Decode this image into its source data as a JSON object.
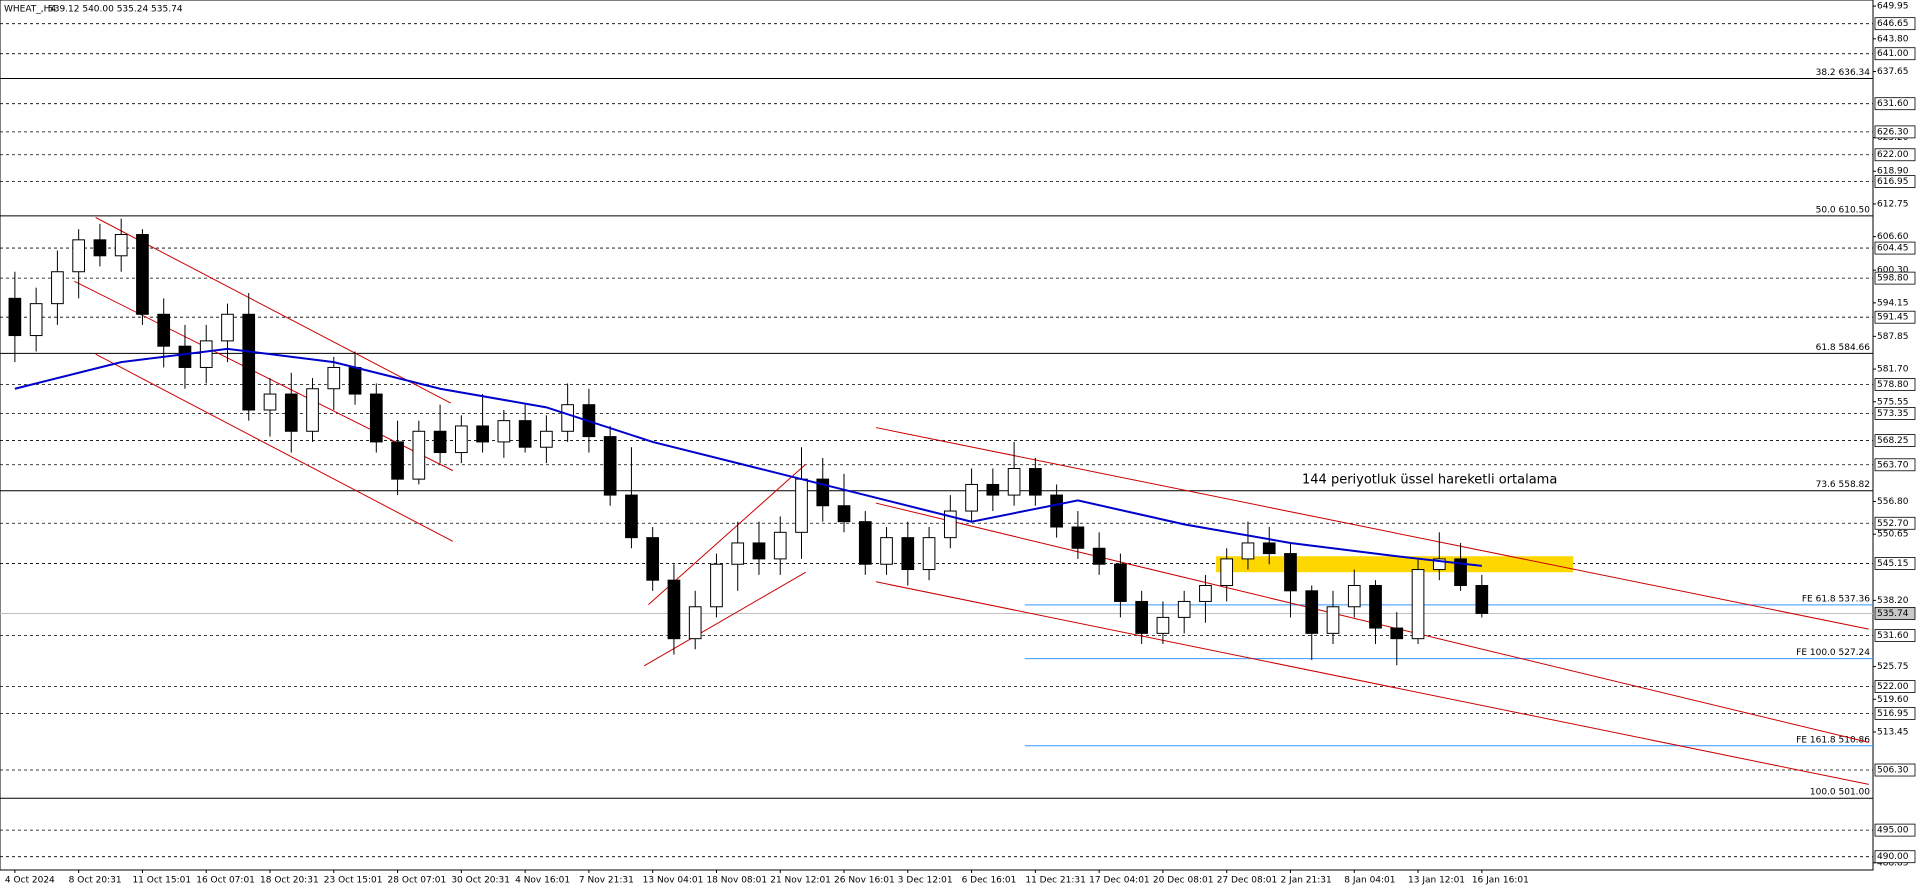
{
  "chart_data": {
    "type": "candlestick",
    "title": "WHEAT_,H4",
    "subtitle": "539.12 540.00 535.24 535.74",
    "annotation": "144 periyotluk üssel hareketli ortalama",
    "annotation_color": "#1a1aff",
    "categories": [
      "4 Oct 2024",
      null,
      null,
      "8 Oct 20:31",
      null,
      null,
      "11 Oct 15:01",
      null,
      null,
      "16 Oct 07:01",
      null,
      null,
      "18 Oct 20:31",
      null,
      null,
      "23 Oct 15:01",
      null,
      null,
      "28 Oct 07:01",
      null,
      null,
      "30 Oct 20:31",
      null,
      null,
      "4 Nov 16:01",
      null,
      null,
      "7 Nov 21:31",
      null,
      null,
      "13 Nov 04:01",
      null,
      null,
      "18 Nov 08:01",
      null,
      null,
      "21 Nov 12:01",
      null,
      null,
      "26 Nov 16:01",
      null,
      null,
      "3 Dec 12:01",
      null,
      null,
      "6 Dec 16:01",
      null,
      null,
      "11 Dec 21:31",
      null,
      null,
      "17 Dec 04:01",
      null,
      null,
      "20 Dec 08:01",
      null,
      null,
      "27 Dec 08:01",
      null,
      null,
      "2 Jan 21:31",
      null,
      null,
      "8 Jan 04:01",
      null,
      null,
      "13 Jan 12:01",
      null,
      null,
      "16 Jan 16:01"
    ],
    "open": [
      595,
      588,
      594,
      600,
      606,
      603,
      607,
      592,
      586,
      582,
      587,
      592,
      574,
      577,
      570,
      578,
      582,
      577,
      568,
      561,
      570,
      566,
      571,
      568,
      572,
      567,
      570,
      575,
      569,
      558,
      550,
      542,
      531,
      537,
      545,
      549,
      546,
      551,
      561,
      556,
      553,
      545,
      550,
      544,
      550,
      555,
      560,
      558,
      563,
      558,
      552,
      548,
      545,
      538,
      532,
      535,
      538,
      541,
      546,
      549,
      547,
      540,
      532,
      537,
      541,
      533,
      531,
      544,
      546,
      541
    ],
    "high": [
      600,
      597,
      604,
      608,
      609,
      610,
      608,
      595,
      590,
      590,
      594,
      596,
      580,
      581,
      580,
      584,
      585,
      579,
      572,
      572,
      575,
      573,
      577,
      574,
      575,
      573,
      579,
      578,
      571,
      567,
      552,
      545,
      540,
      547,
      553,
      553,
      554,
      567,
      565,
      562,
      555,
      552,
      553,
      552,
      558,
      563,
      563,
      568,
      565,
      560,
      555,
      551,
      547,
      540,
      538,
      540,
      543,
      548,
      553,
      552,
      549,
      541,
      540,
      544,
      542,
      536,
      546,
      551,
      549,
      543
    ],
    "low": [
      583,
      585,
      590,
      595,
      601,
      600,
      590,
      582,
      578,
      579,
      583,
      572,
      569,
      566,
      568,
      574,
      575,
      566,
      558,
      560,
      564,
      564,
      566,
      565,
      566,
      564,
      568,
      566,
      556,
      548,
      540,
      528,
      529,
      535,
      540,
      543,
      543,
      546,
      553,
      551,
      543,
      543,
      541,
      542,
      548,
      553,
      555,
      556,
      556,
      550,
      546,
      543,
      535,
      530,
      530,
      532,
      534,
      538,
      544,
      545,
      535,
      527,
      530,
      535,
      530,
      526,
      530,
      542,
      540,
      535
    ],
    "close": [
      588,
      594,
      600,
      606,
      603,
      607,
      592,
      586,
      582,
      587,
      592,
      574,
      577,
      570,
      578,
      582,
      577,
      568,
      561,
      570,
      566,
      571,
      568,
      572,
      567,
      570,
      575,
      569,
      558,
      550,
      542,
      531,
      537,
      545,
      549,
      546,
      551,
      561,
      556,
      553,
      545,
      550,
      544,
      550,
      555,
      560,
      558,
      563,
      558,
      552,
      548,
      545,
      538,
      532,
      535,
      538,
      541,
      546,
      549,
      547,
      540,
      532,
      537,
      541,
      533,
      531,
      544,
      546,
      541,
      535.74
    ],
    "up_color": "#ffffff",
    "down_color": "#000000",
    "xlim": [
      -0.7,
      87.4
    ],
    "ylim": [
      487.5,
      651.1
    ],
    "yticks": [
      649.95,
      {
        "value": 643.8,
        "label": "643.80"
      },
      637.65,
      {
        "value": 625.2,
        "label": "625.20"
      },
      {
        "value": 618.9,
        "label": "618.90"
      },
      612.75,
      {
        "value": 606.6,
        "label": "606.60"
      },
      {
        "value": 600.3,
        "label": "600.30"
      },
      594.15,
      587.85,
      {
        "value": 581.7,
        "label": "581.70"
      },
      575.55,
      {
        "value": 556.8,
        "label": "556.80"
      },
      550.65,
      {
        "value": 538.2,
        "label": "538.20"
      },
      525.75,
      {
        "value": 519.6,
        "label": "519.60"
      },
      513.45,
      488.85
    ],
    "levels": [
      646.65,
      {
        "value": 641,
        "label": "641.00"
      },
      {
        "value": 631.6,
        "label": "631.60"
      },
      {
        "value": 626.3,
        "label": "626.30"
      },
      {
        "value": 622,
        "label": "622.00"
      },
      616.95,
      604.45,
      {
        "value": 598.8,
        "label": "598.80"
      },
      591.45,
      {
        "value": 578.8,
        "label": "578.80"
      },
      573.35,
      568.25,
      {
        "value": 563.7,
        "label": "563.70"
      },
      {
        "value": 552.7,
        "label": "552.70"
      },
      545.15,
      {
        "value": 531.6,
        "label": "531.60"
      },
      {
        "value": 522,
        "label": "522.00"
      },
      516.95,
      {
        "value": 506.3,
        "label": "506.30"
      },
      {
        "value": 495,
        "label": "495.00"
      },
      {
        "value": 490,
        "label": "490.00"
      }
    ],
    "last_price": 535.74,
    "fib_levels": [
      {
        "value": 636.34,
        "label": "38.2 636.34"
      },
      {
        "value": 610.5,
        "label": "50.0 610.50"
      },
      {
        "value": 584.66,
        "label": "61.8 584.66"
      },
      {
        "value": 558.82,
        "label": "73.6 558.82"
      },
      {
        "value": 501,
        "label": "100.0 501.00"
      }
    ],
    "fib_expansion": {
      "color": "#3399ff",
      "start_x": 47.5,
      "levels": [
        {
          "value": 537.36,
          "label": "FE 61.8 537.36"
        },
        {
          "value": 527.24,
          "label": "FE 100.0 527.24"
        },
        {
          "value": 510.86,
          "label": "FE 161.8 510.86"
        }
      ]
    },
    "moving_average": {
      "color": "#0000cc",
      "x": [
        0,
        5,
        10,
        15,
        20,
        25,
        30,
        35,
        40,
        45,
        50,
        55,
        60,
        65,
        69
      ],
      "values": [
        578,
        583,
        585.5,
        583,
        578,
        574.5,
        568,
        563,
        558,
        553,
        557,
        552.5,
        549,
        546.5,
        544.7
      ]
    },
    "trendline_color": "#cc0000",
    "trendlines": [
      {
        "x": [
          3.8,
          20.5
        ],
        "values": [
          610.2,
          575.3
        ]
      },
      {
        "x": [
          2.8,
          20.6
        ],
        "values": [
          598.2,
          562.6
        ]
      },
      {
        "x": [
          3.8,
          20.6
        ],
        "values": [
          584.5,
          549.3
        ]
      },
      {
        "x": [
          29.8,
          37.2
        ],
        "values": [
          537.4,
          563.8
        ]
      },
      {
        "x": [
          29.6,
          37.2
        ],
        "values": [
          525.9,
          543.5
        ]
      },
      {
        "x": [
          40.5,
          87.2
        ],
        "values": [
          570.7,
          532.8
        ]
      },
      {
        "x": [
          40.5,
          87.2
        ],
        "values": [
          556.5,
          511.5
        ]
      },
      {
        "x": [
          40.5,
          87.2
        ],
        "values": [
          541.7,
          503.6
        ]
      }
    ],
    "zone": {
      "color": "#ffd700",
      "x": [
        56.5,
        73.3
      ],
      "values": [
        546.5,
        543.5
      ]
    }
  }
}
